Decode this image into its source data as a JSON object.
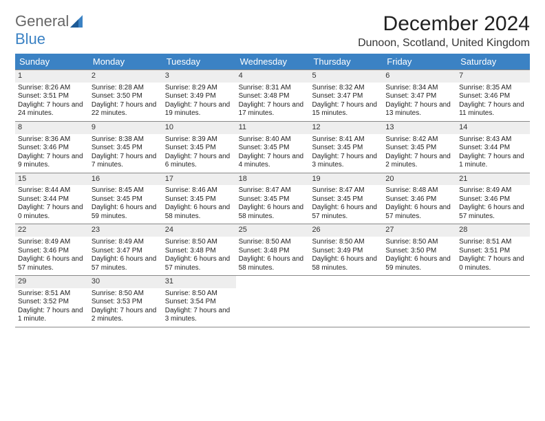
{
  "logo": {
    "line1": "General",
    "line2": "Blue"
  },
  "title": "December 2024",
  "location": "Dunoon, Scotland, United Kingdom",
  "colors": {
    "header_bg": "#3b82c4",
    "header_text": "#ffffff",
    "daynum_bg": "#eeeeee",
    "border": "#888888",
    "text": "#222222",
    "logo_gray": "#666666",
    "logo_blue": "#3b82c4"
  },
  "dayNames": [
    "Sunday",
    "Monday",
    "Tuesday",
    "Wednesday",
    "Thursday",
    "Friday",
    "Saturday"
  ],
  "weeks": [
    [
      {
        "day": "1",
        "sunrise": "Sunrise: 8:26 AM",
        "sunset": "Sunset: 3:51 PM",
        "daylight": "Daylight: 7 hours and 24 minutes."
      },
      {
        "day": "2",
        "sunrise": "Sunrise: 8:28 AM",
        "sunset": "Sunset: 3:50 PM",
        "daylight": "Daylight: 7 hours and 22 minutes."
      },
      {
        "day": "3",
        "sunrise": "Sunrise: 8:29 AM",
        "sunset": "Sunset: 3:49 PM",
        "daylight": "Daylight: 7 hours and 19 minutes."
      },
      {
        "day": "4",
        "sunrise": "Sunrise: 8:31 AM",
        "sunset": "Sunset: 3:48 PM",
        "daylight": "Daylight: 7 hours and 17 minutes."
      },
      {
        "day": "5",
        "sunrise": "Sunrise: 8:32 AM",
        "sunset": "Sunset: 3:47 PM",
        "daylight": "Daylight: 7 hours and 15 minutes."
      },
      {
        "day": "6",
        "sunrise": "Sunrise: 8:34 AM",
        "sunset": "Sunset: 3:47 PM",
        "daylight": "Daylight: 7 hours and 13 minutes."
      },
      {
        "day": "7",
        "sunrise": "Sunrise: 8:35 AM",
        "sunset": "Sunset: 3:46 PM",
        "daylight": "Daylight: 7 hours and 11 minutes."
      }
    ],
    [
      {
        "day": "8",
        "sunrise": "Sunrise: 8:36 AM",
        "sunset": "Sunset: 3:46 PM",
        "daylight": "Daylight: 7 hours and 9 minutes."
      },
      {
        "day": "9",
        "sunrise": "Sunrise: 8:38 AM",
        "sunset": "Sunset: 3:45 PM",
        "daylight": "Daylight: 7 hours and 7 minutes."
      },
      {
        "day": "10",
        "sunrise": "Sunrise: 8:39 AM",
        "sunset": "Sunset: 3:45 PM",
        "daylight": "Daylight: 7 hours and 6 minutes."
      },
      {
        "day": "11",
        "sunrise": "Sunrise: 8:40 AM",
        "sunset": "Sunset: 3:45 PM",
        "daylight": "Daylight: 7 hours and 4 minutes."
      },
      {
        "day": "12",
        "sunrise": "Sunrise: 8:41 AM",
        "sunset": "Sunset: 3:45 PM",
        "daylight": "Daylight: 7 hours and 3 minutes."
      },
      {
        "day": "13",
        "sunrise": "Sunrise: 8:42 AM",
        "sunset": "Sunset: 3:45 PM",
        "daylight": "Daylight: 7 hours and 2 minutes."
      },
      {
        "day": "14",
        "sunrise": "Sunrise: 8:43 AM",
        "sunset": "Sunset: 3:44 PM",
        "daylight": "Daylight: 7 hours and 1 minute."
      }
    ],
    [
      {
        "day": "15",
        "sunrise": "Sunrise: 8:44 AM",
        "sunset": "Sunset: 3:44 PM",
        "daylight": "Daylight: 7 hours and 0 minutes."
      },
      {
        "day": "16",
        "sunrise": "Sunrise: 8:45 AM",
        "sunset": "Sunset: 3:45 PM",
        "daylight": "Daylight: 6 hours and 59 minutes."
      },
      {
        "day": "17",
        "sunrise": "Sunrise: 8:46 AM",
        "sunset": "Sunset: 3:45 PM",
        "daylight": "Daylight: 6 hours and 58 minutes."
      },
      {
        "day": "18",
        "sunrise": "Sunrise: 8:47 AM",
        "sunset": "Sunset: 3:45 PM",
        "daylight": "Daylight: 6 hours and 58 minutes."
      },
      {
        "day": "19",
        "sunrise": "Sunrise: 8:47 AM",
        "sunset": "Sunset: 3:45 PM",
        "daylight": "Daylight: 6 hours and 57 minutes."
      },
      {
        "day": "20",
        "sunrise": "Sunrise: 8:48 AM",
        "sunset": "Sunset: 3:46 PM",
        "daylight": "Daylight: 6 hours and 57 minutes."
      },
      {
        "day": "21",
        "sunrise": "Sunrise: 8:49 AM",
        "sunset": "Sunset: 3:46 PM",
        "daylight": "Daylight: 6 hours and 57 minutes."
      }
    ],
    [
      {
        "day": "22",
        "sunrise": "Sunrise: 8:49 AM",
        "sunset": "Sunset: 3:46 PM",
        "daylight": "Daylight: 6 hours and 57 minutes."
      },
      {
        "day": "23",
        "sunrise": "Sunrise: 8:49 AM",
        "sunset": "Sunset: 3:47 PM",
        "daylight": "Daylight: 6 hours and 57 minutes."
      },
      {
        "day": "24",
        "sunrise": "Sunrise: 8:50 AM",
        "sunset": "Sunset: 3:48 PM",
        "daylight": "Daylight: 6 hours and 57 minutes."
      },
      {
        "day": "25",
        "sunrise": "Sunrise: 8:50 AM",
        "sunset": "Sunset: 3:48 PM",
        "daylight": "Daylight: 6 hours and 58 minutes."
      },
      {
        "day": "26",
        "sunrise": "Sunrise: 8:50 AM",
        "sunset": "Sunset: 3:49 PM",
        "daylight": "Daylight: 6 hours and 58 minutes."
      },
      {
        "day": "27",
        "sunrise": "Sunrise: 8:50 AM",
        "sunset": "Sunset: 3:50 PM",
        "daylight": "Daylight: 6 hours and 59 minutes."
      },
      {
        "day": "28",
        "sunrise": "Sunrise: 8:51 AM",
        "sunset": "Sunset: 3:51 PM",
        "daylight": "Daylight: 7 hours and 0 minutes."
      }
    ],
    [
      {
        "day": "29",
        "sunrise": "Sunrise: 8:51 AM",
        "sunset": "Sunset: 3:52 PM",
        "daylight": "Daylight: 7 hours and 1 minute."
      },
      {
        "day": "30",
        "sunrise": "Sunrise: 8:50 AM",
        "sunset": "Sunset: 3:53 PM",
        "daylight": "Daylight: 7 hours and 2 minutes."
      },
      {
        "day": "31",
        "sunrise": "Sunrise: 8:50 AM",
        "sunset": "Sunset: 3:54 PM",
        "daylight": "Daylight: 7 hours and 3 minutes."
      },
      null,
      null,
      null,
      null
    ]
  ]
}
